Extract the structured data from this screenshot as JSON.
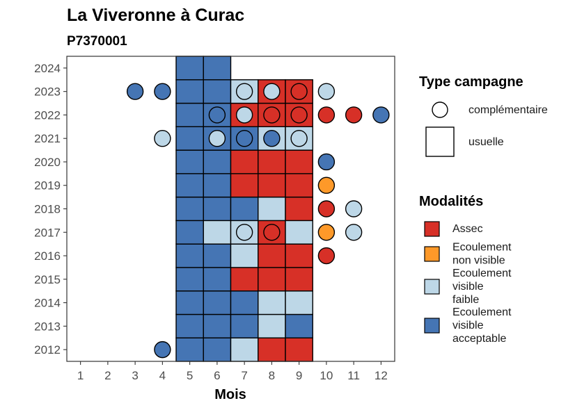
{
  "chart_data": {
    "type": "heatmap",
    "title": "La Viveronne à Curac",
    "subtitle": "P7370001",
    "xlabel": "Mois",
    "ylabel": "",
    "x_ticks": [
      "1",
      "2",
      "3",
      "4",
      "5",
      "6",
      "7",
      "8",
      "9",
      "10",
      "11",
      "12"
    ],
    "y_ticks": [
      "2012",
      "2013",
      "2014",
      "2015",
      "2016",
      "2017",
      "2018",
      "2019",
      "2020",
      "2021",
      "2022",
      "2023",
      "2024"
    ],
    "xlim": [
      0.5,
      12.5
    ],
    "ylim": [
      2011.5,
      2024.5
    ],
    "colors": {
      "Assec": "#d73027",
      "Ecoulement non visible": "#fe9929",
      "Ecoulement visible faible": "#bdd7e7",
      "Ecoulement visible acceptable": "#4575b4"
    },
    "legend_shape": {
      "title": "Type campagne",
      "items": [
        {
          "label": "complémentaire",
          "shape": "circle"
        },
        {
          "label": "usuelle",
          "shape": "square"
        }
      ]
    },
    "legend_color": {
      "title": "Modalités",
      "items": [
        {
          "key": "Assec",
          "lines": [
            "Assec"
          ]
        },
        {
          "key": "Ecoulement non visible",
          "lines": [
            "Ecoulement",
            "non visible"
          ]
        },
        {
          "key": "Ecoulement visible faible",
          "lines": [
            "Ecoulement",
            "visible",
            "faible"
          ]
        },
        {
          "key": "Ecoulement visible acceptable",
          "lines": [
            "Ecoulement",
            "visible",
            "acceptable"
          ]
        }
      ]
    },
    "usuelle": [
      {
        "year": 2012,
        "month": 5,
        "value": "Ecoulement visible acceptable"
      },
      {
        "year": 2012,
        "month": 6,
        "value": "Ecoulement visible acceptable"
      },
      {
        "year": 2012,
        "month": 7,
        "value": "Ecoulement visible faible"
      },
      {
        "year": 2012,
        "month": 8,
        "value": "Assec"
      },
      {
        "year": 2012,
        "month": 9,
        "value": "Assec"
      },
      {
        "year": 2013,
        "month": 5,
        "value": "Ecoulement visible acceptable"
      },
      {
        "year": 2013,
        "month": 6,
        "value": "Ecoulement visible acceptable"
      },
      {
        "year": 2013,
        "month": 7,
        "value": "Ecoulement visible acceptable"
      },
      {
        "year": 2013,
        "month": 8,
        "value": "Ecoulement visible faible"
      },
      {
        "year": 2013,
        "month": 9,
        "value": "Ecoulement visible acceptable"
      },
      {
        "year": 2014,
        "month": 5,
        "value": "Ecoulement visible acceptable"
      },
      {
        "year": 2014,
        "month": 6,
        "value": "Ecoulement visible acceptable"
      },
      {
        "year": 2014,
        "month": 7,
        "value": "Ecoulement visible acceptable"
      },
      {
        "year": 2014,
        "month": 8,
        "value": "Ecoulement visible faible"
      },
      {
        "year": 2014,
        "month": 9,
        "value": "Ecoulement visible faible"
      },
      {
        "year": 2015,
        "month": 5,
        "value": "Ecoulement visible acceptable"
      },
      {
        "year": 2015,
        "month": 6,
        "value": "Ecoulement visible acceptable"
      },
      {
        "year": 2015,
        "month": 7,
        "value": "Assec"
      },
      {
        "year": 2015,
        "month": 8,
        "value": "Assec"
      },
      {
        "year": 2015,
        "month": 9,
        "value": "Assec"
      },
      {
        "year": 2016,
        "month": 5,
        "value": "Ecoulement visible acceptable"
      },
      {
        "year": 2016,
        "month": 6,
        "value": "Ecoulement visible acceptable"
      },
      {
        "year": 2016,
        "month": 7,
        "value": "Ecoulement visible faible"
      },
      {
        "year": 2016,
        "month": 8,
        "value": "Assec"
      },
      {
        "year": 2016,
        "month": 9,
        "value": "Assec"
      },
      {
        "year": 2017,
        "month": 5,
        "value": "Ecoulement visible acceptable"
      },
      {
        "year": 2017,
        "month": 6,
        "value": "Ecoulement visible faible"
      },
      {
        "year": 2017,
        "month": 7,
        "value": "Ecoulement visible faible"
      },
      {
        "year": 2017,
        "month": 8,
        "value": "Assec"
      },
      {
        "year": 2017,
        "month": 9,
        "value": "Ecoulement visible faible"
      },
      {
        "year": 2018,
        "month": 5,
        "value": "Ecoulement visible acceptable"
      },
      {
        "year": 2018,
        "month": 6,
        "value": "Ecoulement visible acceptable"
      },
      {
        "year": 2018,
        "month": 7,
        "value": "Ecoulement visible acceptable"
      },
      {
        "year": 2018,
        "month": 8,
        "value": "Ecoulement visible faible"
      },
      {
        "year": 2018,
        "month": 9,
        "value": "Assec"
      },
      {
        "year": 2019,
        "month": 5,
        "value": "Ecoulement visible acceptable"
      },
      {
        "year": 2019,
        "month": 6,
        "value": "Ecoulement visible acceptable"
      },
      {
        "year": 2019,
        "month": 7,
        "value": "Assec"
      },
      {
        "year": 2019,
        "month": 8,
        "value": "Assec"
      },
      {
        "year": 2019,
        "month": 9,
        "value": "Assec"
      },
      {
        "year": 2020,
        "month": 5,
        "value": "Ecoulement visible acceptable"
      },
      {
        "year": 2020,
        "month": 6,
        "value": "Ecoulement visible acceptable"
      },
      {
        "year": 2020,
        "month": 7,
        "value": "Assec"
      },
      {
        "year": 2020,
        "month": 8,
        "value": "Assec"
      },
      {
        "year": 2020,
        "month": 9,
        "value": "Assec"
      },
      {
        "year": 2021,
        "month": 5,
        "value": "Ecoulement visible acceptable"
      },
      {
        "year": 2021,
        "month": 6,
        "value": "Ecoulement visible acceptable"
      },
      {
        "year": 2021,
        "month": 7,
        "value": "Ecoulement visible acceptable"
      },
      {
        "year": 2021,
        "month": 8,
        "value": "Ecoulement visible faible"
      },
      {
        "year": 2021,
        "month": 9,
        "value": "Ecoulement visible faible"
      },
      {
        "year": 2022,
        "month": 5,
        "value": "Ecoulement visible acceptable"
      },
      {
        "year": 2022,
        "month": 6,
        "value": "Ecoulement visible acceptable"
      },
      {
        "year": 2022,
        "month": 7,
        "value": "Assec"
      },
      {
        "year": 2022,
        "month": 8,
        "value": "Assec"
      },
      {
        "year": 2022,
        "month": 9,
        "value": "Assec"
      },
      {
        "year": 2023,
        "month": 5,
        "value": "Ecoulement visible acceptable"
      },
      {
        "year": 2023,
        "month": 6,
        "value": "Ecoulement visible acceptable"
      },
      {
        "year": 2023,
        "month": 7,
        "value": "Ecoulement visible faible"
      },
      {
        "year": 2023,
        "month": 8,
        "value": "Assec"
      },
      {
        "year": 2023,
        "month": 9,
        "value": "Assec"
      },
      {
        "year": 2024,
        "month": 5,
        "value": "Ecoulement visible acceptable"
      },
      {
        "year": 2024,
        "month": 6,
        "value": "Ecoulement visible acceptable"
      }
    ],
    "complementaire": [
      {
        "year": 2012,
        "month": 4,
        "value": "Ecoulement visible acceptable"
      },
      {
        "year": 2016,
        "month": 10,
        "value": "Assec"
      },
      {
        "year": 2017,
        "month": 7,
        "value": "Ecoulement visible faible"
      },
      {
        "year": 2017,
        "month": 8,
        "value": "Assec"
      },
      {
        "year": 2017,
        "month": 10,
        "value": "Ecoulement non visible"
      },
      {
        "year": 2017,
        "month": 11,
        "value": "Ecoulement visible faible"
      },
      {
        "year": 2018,
        "month": 10,
        "value": "Assec"
      },
      {
        "year": 2018,
        "month": 11,
        "value": "Ecoulement visible faible"
      },
      {
        "year": 2019,
        "month": 10,
        "value": "Ecoulement non visible"
      },
      {
        "year": 2020,
        "month": 10,
        "value": "Ecoulement visible acceptable"
      },
      {
        "year": 2021,
        "month": 4,
        "value": "Ecoulement visible faible"
      },
      {
        "year": 2021,
        "month": 6,
        "value": "Ecoulement visible faible"
      },
      {
        "year": 2021,
        "month": 7,
        "value": "Ecoulement visible acceptable"
      },
      {
        "year": 2021,
        "month": 8,
        "value": "Ecoulement visible acceptable"
      },
      {
        "year": 2021,
        "month": 9,
        "value": "Ecoulement visible faible"
      },
      {
        "year": 2022,
        "month": 6,
        "value": "Ecoulement visible acceptable"
      },
      {
        "year": 2022,
        "month": 7,
        "value": "Ecoulement visible faible"
      },
      {
        "year": 2022,
        "month": 8,
        "value": "Assec"
      },
      {
        "year": 2022,
        "month": 9,
        "value": "Assec"
      },
      {
        "year": 2022,
        "month": 10,
        "value": "Assec"
      },
      {
        "year": 2022,
        "month": 11,
        "value": "Assec"
      },
      {
        "year": 2022,
        "month": 12,
        "value": "Ecoulement visible acceptable"
      },
      {
        "year": 2023,
        "month": 3,
        "value": "Ecoulement visible acceptable"
      },
      {
        "year": 2023,
        "month": 4,
        "value": "Ecoulement visible acceptable"
      },
      {
        "year": 2023,
        "month": 7,
        "value": "Ecoulement visible faible"
      },
      {
        "year": 2023,
        "month": 8,
        "value": "Ecoulement visible faible"
      },
      {
        "year": 2023,
        "month": 9,
        "value": "Assec"
      },
      {
        "year": 2023,
        "month": 10,
        "value": "Ecoulement visible faible"
      }
    ]
  }
}
